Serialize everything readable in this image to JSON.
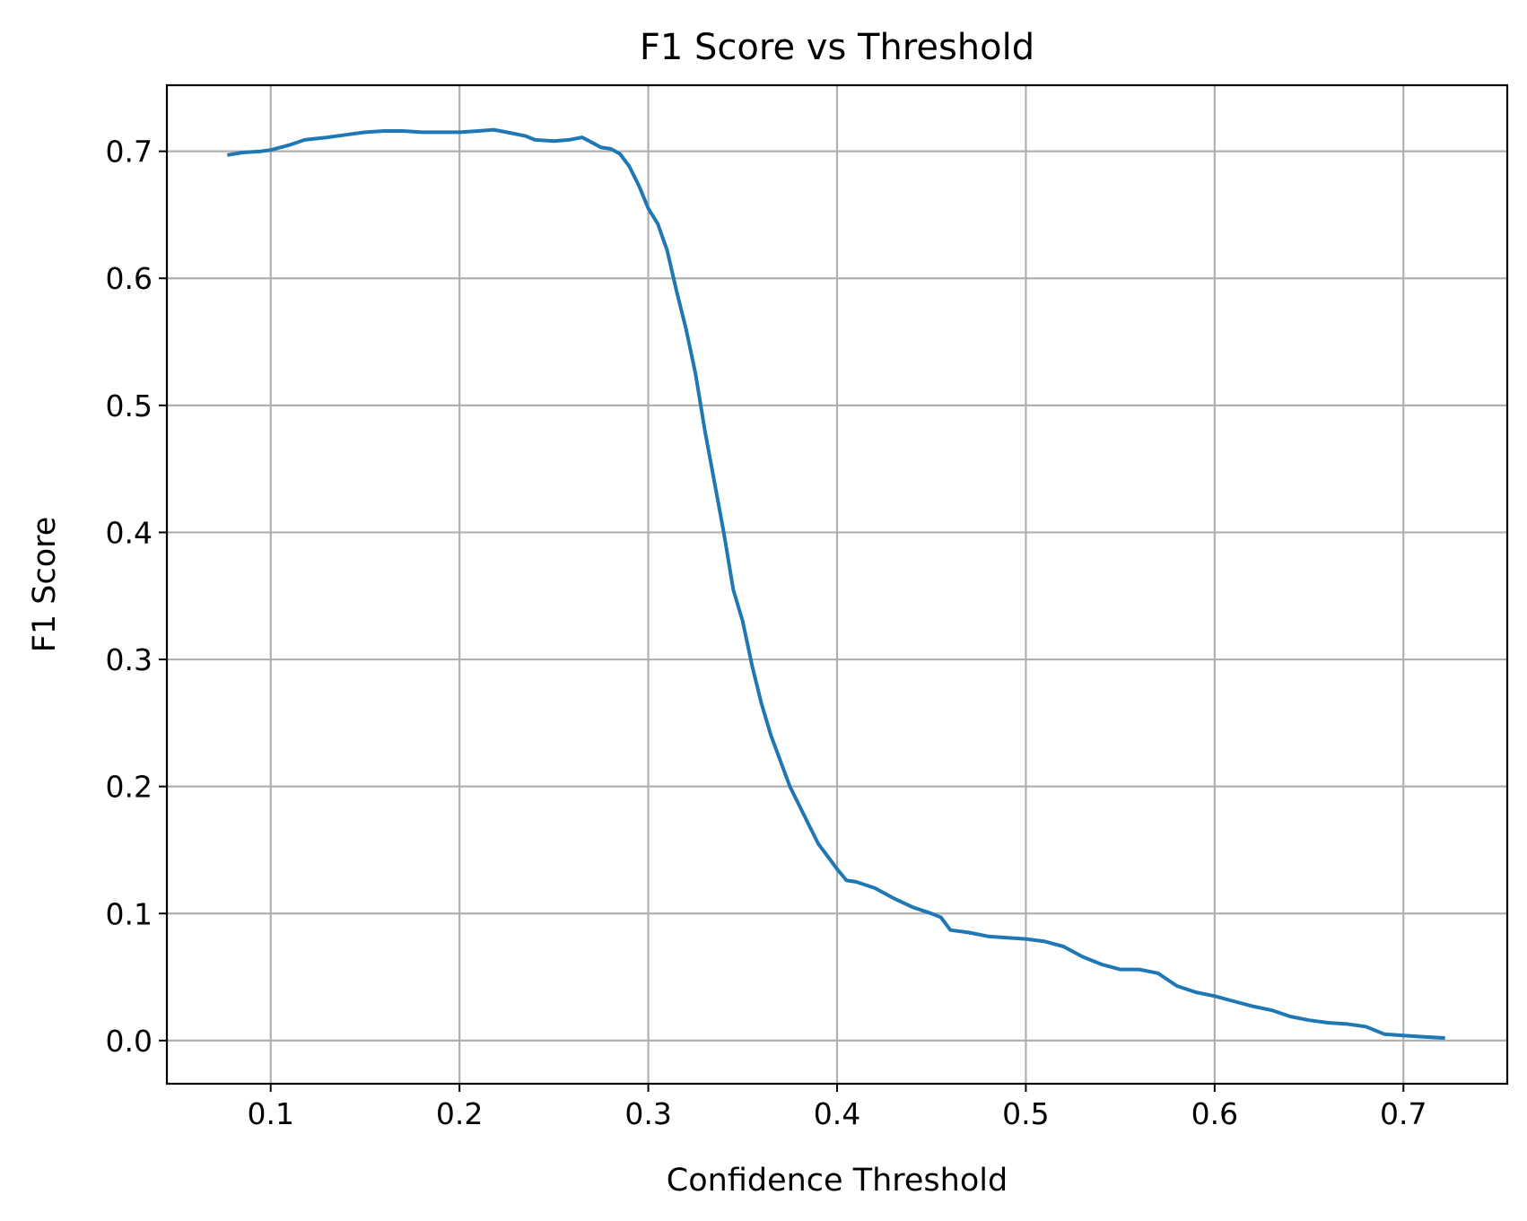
{
  "chart_data": {
    "type": "line",
    "title": "F1 Score vs Threshold",
    "xlabel": "Confidence Threshold",
    "ylabel": "F1 Score",
    "xlim": [
      0.045,
      0.755
    ],
    "ylim": [
      -0.034,
      0.752
    ],
    "xticks": [
      0.1,
      0.2,
      0.3,
      0.4,
      0.5,
      0.6,
      0.7
    ],
    "xtick_labels": [
      "0.1",
      "0.2",
      "0.3",
      "0.4",
      "0.5",
      "0.6",
      "0.7"
    ],
    "yticks": [
      0.0,
      0.1,
      0.2,
      0.3,
      0.4,
      0.5,
      0.6,
      0.7
    ],
    "ytick_labels": [
      "0.0",
      "0.1",
      "0.2",
      "0.3",
      "0.4",
      "0.5",
      "0.6",
      "0.7"
    ],
    "grid": true,
    "color": "#1f77b4",
    "series": [
      {
        "x": [
          0.077,
          0.085,
          0.095,
          0.1,
          0.11,
          0.118,
          0.13,
          0.14,
          0.15,
          0.16,
          0.17,
          0.18,
          0.19,
          0.2,
          0.21,
          0.218,
          0.225,
          0.235,
          0.24,
          0.25,
          0.258,
          0.265,
          0.27,
          0.275,
          0.28,
          0.285,
          0.29,
          0.295,
          0.3,
          0.305,
          0.31,
          0.315,
          0.32,
          0.325,
          0.33,
          0.335,
          0.34,
          0.345,
          0.35,
          0.355,
          0.36,
          0.365,
          0.37,
          0.375,
          0.38,
          0.385,
          0.39,
          0.395,
          0.4,
          0.405,
          0.41,
          0.42,
          0.43,
          0.44,
          0.45,
          0.455,
          0.46,
          0.47,
          0.48,
          0.49,
          0.5,
          0.51,
          0.52,
          0.53,
          0.54,
          0.55,
          0.56,
          0.57,
          0.58,
          0.59,
          0.6,
          0.61,
          0.62,
          0.63,
          0.64,
          0.65,
          0.66,
          0.67,
          0.68,
          0.69,
          0.7,
          0.71,
          0.722
        ],
        "y": [
          0.697,
          0.699,
          0.7,
          0.701,
          0.705,
          0.709,
          0.711,
          0.713,
          0.715,
          0.716,
          0.716,
          0.715,
          0.715,
          0.715,
          0.716,
          0.717,
          0.715,
          0.712,
          0.709,
          0.708,
          0.709,
          0.711,
          0.707,
          0.703,
          0.702,
          0.698,
          0.688,
          0.673,
          0.655,
          0.643,
          0.622,
          0.59,
          0.56,
          0.525,
          0.48,
          0.44,
          0.4,
          0.355,
          0.33,
          0.295,
          0.265,
          0.24,
          0.22,
          0.2,
          0.185,
          0.17,
          0.155,
          0.145,
          0.135,
          0.126,
          0.125,
          0.12,
          0.112,
          0.105,
          0.1,
          0.097,
          0.087,
          0.085,
          0.082,
          0.081,
          0.08,
          0.078,
          0.074,
          0.066,
          0.06,
          0.056,
          0.056,
          0.053,
          0.043,
          0.038,
          0.035,
          0.031,
          0.027,
          0.024,
          0.019,
          0.016,
          0.014,
          0.013,
          0.011,
          0.005,
          0.004,
          0.003,
          0.002
        ]
      }
    ]
  }
}
